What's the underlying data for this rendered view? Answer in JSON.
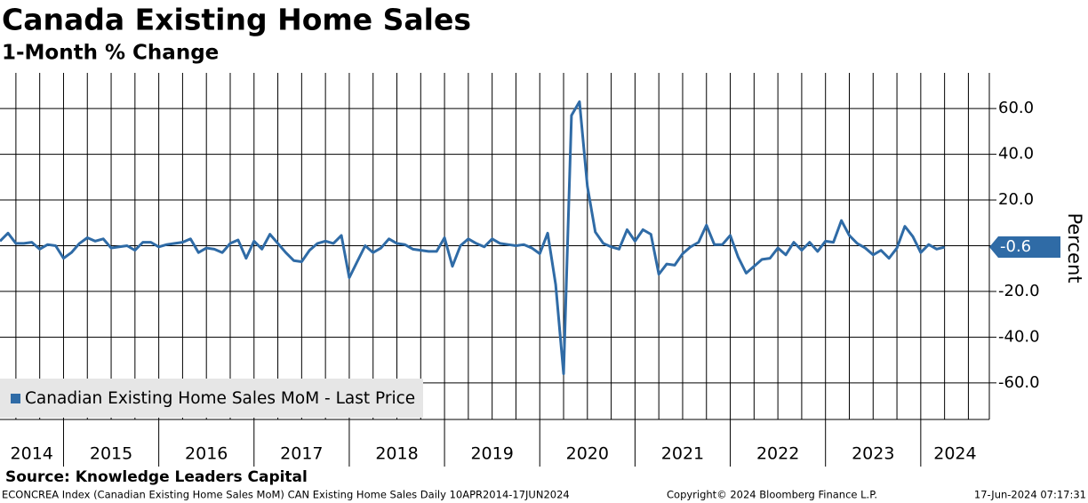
{
  "chart_data": {
    "type": "line",
    "title": "Canada Existing Home Sales",
    "subtitle": "1-Month % Change",
    "y_axis_label": "Percent",
    "source": "Source: Knowledge Leaders Capital",
    "footer_left": "ECONCREA Index (Canadian Existing Home Sales MoM) CAN Existing Home Sales  Daily 10APR2014-17JUN2024",
    "footer_center": "Copyright© 2024 Bloomberg Finance L.P.",
    "footer_right": "17-Jun-2024 07:17:31",
    "last_value_label": "-0.6",
    "grid": true,
    "legend_position": "lower left",
    "xlim": [
      2014.333,
      2024.72
    ],
    "xticks": [
      {
        "value": 2014.5,
        "label": "2014"
      },
      {
        "value": 2015.5,
        "label": "2015"
      },
      {
        "value": 2016.5,
        "label": "2016"
      },
      {
        "value": 2017.5,
        "label": "2017"
      },
      {
        "value": 2018.5,
        "label": "2018"
      },
      {
        "value": 2019.5,
        "label": "2019"
      },
      {
        "value": 2020.5,
        "label": "2020"
      },
      {
        "value": 2021.5,
        "label": "2021"
      },
      {
        "value": 2022.5,
        "label": "2022"
      },
      {
        "value": 2023.5,
        "label": "2023"
      },
      {
        "value": 2024.5,
        "label": "2024"
      }
    ],
    "ylim": [
      -76,
      75.6
    ],
    "yticks": [
      {
        "value": 60,
        "label": "60.0"
      },
      {
        "value": 40,
        "label": "40.0"
      },
      {
        "value": 20,
        "label": "20.0"
      },
      {
        "value": 0,
        "label": "0.0"
      },
      {
        "value": -20,
        "label": "-20.0"
      },
      {
        "value": -40,
        "label": "-40.0"
      },
      {
        "value": -60,
        "label": "-60.0"
      }
    ],
    "x": [
      2014.333,
      2014.417,
      2014.5,
      2014.583,
      2014.667,
      2014.75,
      2014.833,
      2014.917,
      2015.0,
      2015.083,
      2015.167,
      2015.25,
      2015.333,
      2015.417,
      2015.5,
      2015.583,
      2015.667,
      2015.75,
      2015.833,
      2015.917,
      2016.0,
      2016.083,
      2016.167,
      2016.25,
      2016.333,
      2016.417,
      2016.5,
      2016.583,
      2016.667,
      2016.75,
      2016.833,
      2016.917,
      2017.0,
      2017.083,
      2017.167,
      2017.25,
      2017.333,
      2017.417,
      2017.5,
      2017.583,
      2017.667,
      2017.75,
      2017.833,
      2017.917,
      2018.0,
      2018.083,
      2018.167,
      2018.25,
      2018.333,
      2018.417,
      2018.5,
      2018.583,
      2018.667,
      2018.75,
      2018.833,
      2018.917,
      2019.0,
      2019.083,
      2019.167,
      2019.25,
      2019.333,
      2019.417,
      2019.5,
      2019.583,
      2019.667,
      2019.75,
      2019.833,
      2019.917,
      2020.0,
      2020.083,
      2020.167,
      2020.25,
      2020.333,
      2020.417,
      2020.5,
      2020.583,
      2020.667,
      2020.75,
      2020.833,
      2020.917,
      2021.0,
      2021.083,
      2021.167,
      2021.25,
      2021.333,
      2021.417,
      2021.5,
      2021.583,
      2021.667,
      2021.75,
      2021.833,
      2021.917,
      2022.0,
      2022.083,
      2022.167,
      2022.25,
      2022.333,
      2022.417,
      2022.5,
      2022.583,
      2022.667,
      2022.75,
      2022.833,
      2022.917,
      2023.0,
      2023.083,
      2023.167,
      2023.25,
      2023.333,
      2023.417,
      2023.5,
      2023.583,
      2023.667,
      2023.75,
      2023.833,
      2023.917,
      2024.0,
      2024.083,
      2024.167,
      2024.25
    ],
    "series": [
      {
        "name": "Canadian Existing Home Sales MoM - Last Price",
        "color": "#2f6ba6",
        "values": [
          2,
          5.5,
          1,
          1,
          1.5,
          -1.5,
          0.5,
          0,
          -5.5,
          -3,
          1,
          3.5,
          2,
          3,
          -1,
          -0.5,
          0,
          -2,
          1.5,
          1.5,
          -0.5,
          0.5,
          1,
          1.5,
          3,
          -3,
          -1,
          -1.5,
          -3,
          1,
          2.5,
          -5.5,
          2,
          -1.5,
          5,
          1,
          -3,
          -6.5,
          -7,
          -2,
          1,
          2,
          1,
          4.5,
          -14,
          -7,
          0,
          -3,
          -1,
          3,
          1,
          0.5,
          -1.5,
          -2,
          -2.5,
          -2.5,
          3.5,
          -9,
          0,
          3,
          1,
          -0.5,
          3,
          1,
          0.5,
          0,
          0.5,
          -1,
          -3.5,
          5.5,
          -17,
          -56,
          57,
          63,
          26,
          6,
          1,
          -0.5,
          -1.5,
          7,
          2,
          7,
          5,
          -12.5,
          -8,
          -8.5,
          -3.5,
          -0.5,
          1.5,
          9,
          0.5,
          0.5,
          4.5,
          -5,
          -12,
          -9,
          -6,
          -5.5,
          -1,
          -4,
          1.5,
          -2,
          1.5,
          -2.5,
          2,
          1.5,
          11,
          4.5,
          1,
          -1,
          -4,
          -2,
          -5.5,
          -1,
          8.5,
          4,
          -3,
          0.5,
          -1.5,
          -0.6
        ]
      }
    ]
  }
}
